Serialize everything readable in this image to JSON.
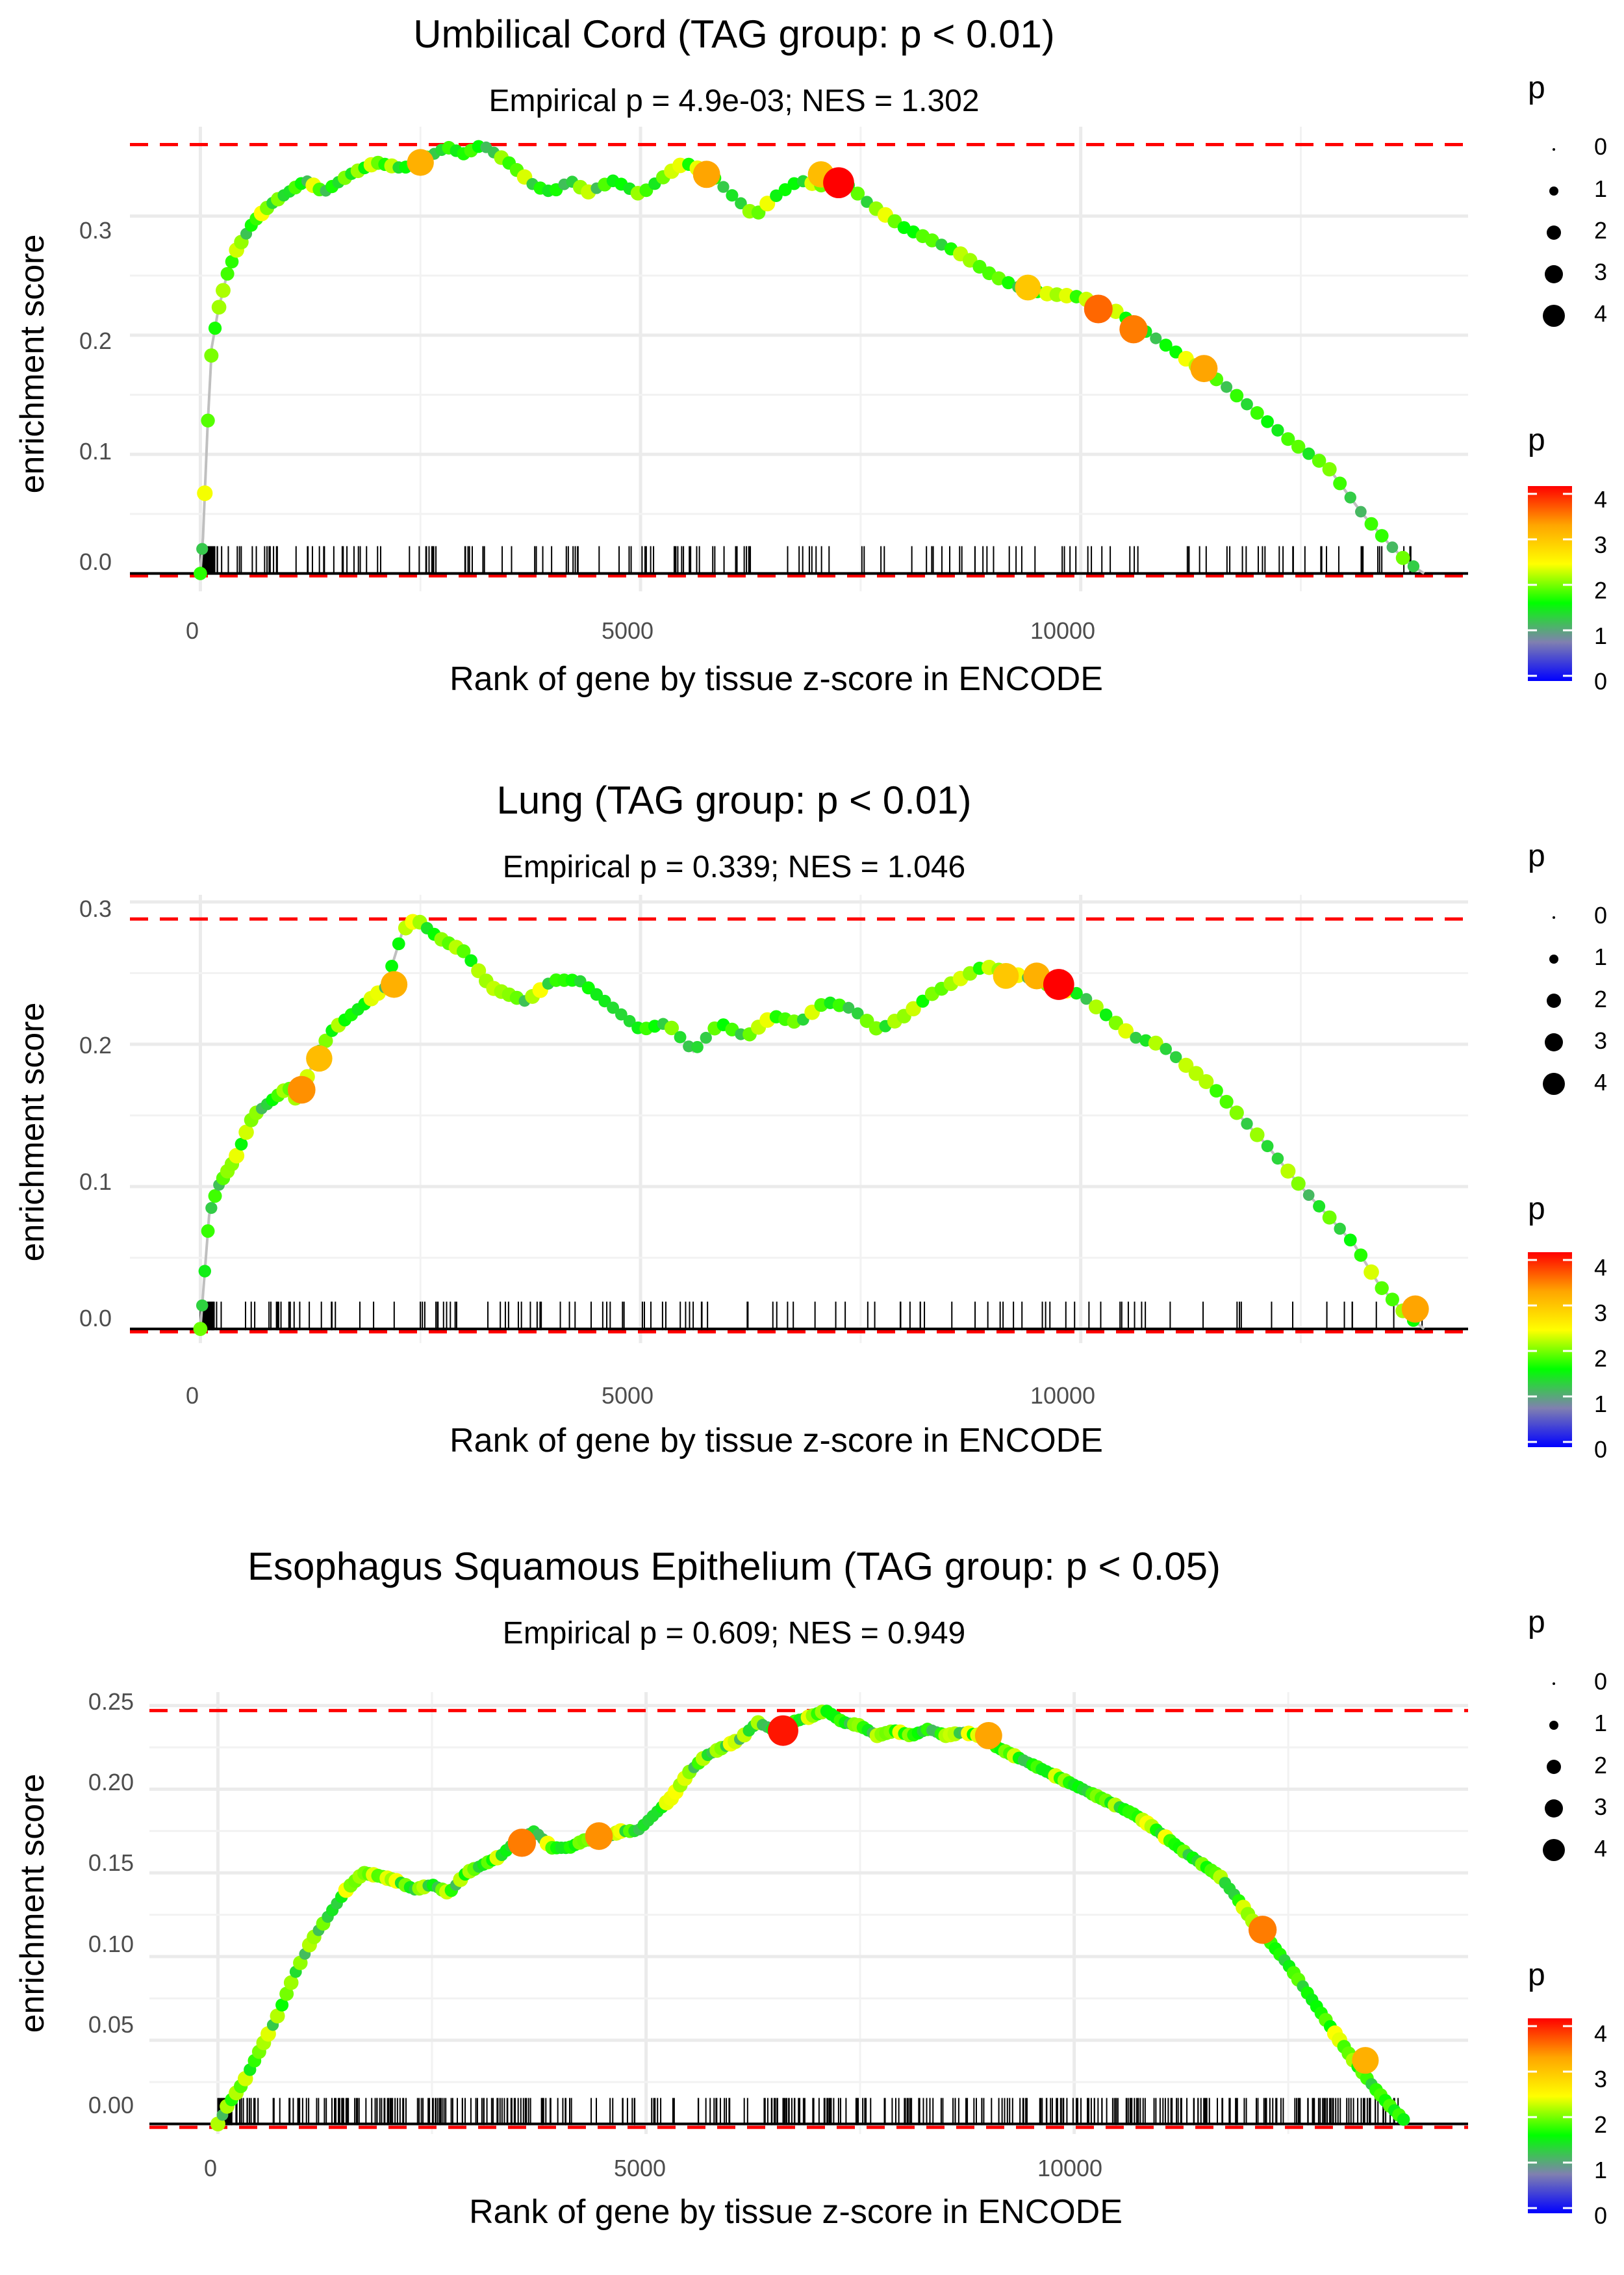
{
  "legend": {
    "size_title": "p",
    "size_labels": [
      "0",
      "1",
      "2",
      "3",
      "4"
    ],
    "color_title": "p",
    "color_labels": [
      "4",
      "3",
      "2",
      "1",
      "0"
    ],
    "colors": [
      "#0000ff",
      "#8080b0",
      "#00ff00",
      "#ffff00",
      "#ffa500",
      "#ff0000"
    ]
  },
  "chart_data": [
    {
      "type": "line",
      "title": "Umbilical Cord (TAG group: p < 0.01)",
      "subtitle": "Empirical p = 4.9e-03; NES = 1.302",
      "xlabel": "Rank of gene by tissue z-score in ENCODE",
      "ylabel": "enrichment score",
      "xlim": [
        -800,
        14400
      ],
      "ylim": [
        -0.015,
        0.375
      ],
      "xticks": [
        0,
        5000,
        10000
      ],
      "xtick_labels": [
        "0",
        "5000",
        "10000"
      ],
      "yticks": [
        0.0,
        0.1,
        0.2,
        0.3
      ],
      "ytick_labels": [
        "0.0",
        "0.1",
        "0.2",
        "0.3"
      ],
      "max_es": 0.36,
      "min_es": -0.002,
      "curve": [
        [
          0,
          0
        ],
        [
          30,
          0.03
        ],
        [
          80,
          0.12
        ],
        [
          130,
          0.19
        ],
        [
          200,
          0.22
        ],
        [
          300,
          0.25
        ],
        [
          400,
          0.27
        ],
        [
          600,
          0.295
        ],
        [
          800,
          0.31
        ],
        [
          1000,
          0.32
        ],
        [
          1200,
          0.33
        ],
        [
          1400,
          0.32
        ],
        [
          1700,
          0.335
        ],
        [
          2000,
          0.345
        ],
        [
          2300,
          0.34
        ],
        [
          2600,
          0.35
        ],
        [
          2800,
          0.358
        ],
        [
          3000,
          0.352
        ],
        [
          3200,
          0.36
        ],
        [
          3500,
          0.345
        ],
        [
          3800,
          0.325
        ],
        [
          4000,
          0.32
        ],
        [
          4200,
          0.33
        ],
        [
          4400,
          0.32
        ],
        [
          4700,
          0.33
        ],
        [
          5000,
          0.318
        ],
        [
          5300,
          0.335
        ],
        [
          5500,
          0.345
        ],
        [
          5800,
          0.335
        ],
        [
          6000,
          0.32
        ],
        [
          6300,
          0.3
        ],
        [
          6500,
          0.315
        ],
        [
          6800,
          0.33
        ],
        [
          7100,
          0.325
        ],
        [
          7300,
          0.33
        ],
        [
          7600,
          0.31
        ],
        [
          8000,
          0.29
        ],
        [
          8300,
          0.28
        ],
        [
          8600,
          0.27
        ],
        [
          9000,
          0.25
        ],
        [
          9300,
          0.24
        ],
        [
          9600,
          0.235
        ],
        [
          10000,
          0.232
        ],
        [
          10400,
          0.22
        ],
        [
          10800,
          0.2
        ],
        [
          11200,
          0.18
        ],
        [
          11600,
          0.16
        ],
        [
          12000,
          0.135
        ],
        [
          12400,
          0.11
        ],
        [
          12800,
          0.09
        ],
        [
          13200,
          0.05
        ],
        [
          13500,
          0.025
        ],
        [
          13700,
          0.01
        ],
        [
          13900,
          0.0
        ]
      ],
      "big_points": [
        [
          2500,
          0.345,
          3.5
        ],
        [
          5750,
          0.335,
          3.6
        ],
        [
          7050,
          0.335,
          3.4
        ],
        [
          7250,
          0.328,
          4.4
        ],
        [
          9400,
          0.24,
          3.3
        ],
        [
          10200,
          0.222,
          3.9
        ],
        [
          10600,
          0.205,
          3.8
        ],
        [
          11400,
          0.172,
          3.6
        ]
      ],
      "ticks_min": 0,
      "ticks_max": 13900,
      "tick_count": 180
    },
    {
      "type": "line",
      "title": "Lung (TAG group: p < 0.01)",
      "subtitle": "Empirical p = 0.339; NES = 1.046",
      "xlabel": "Rank of gene by tissue z-score in ENCODE",
      "ylabel": "enrichment score",
      "xlim": [
        -800,
        14400
      ],
      "ylim": [
        -0.01,
        0.305
      ],
      "xticks": [
        0,
        5000,
        10000
      ],
      "xtick_labels": [
        "0",
        "5000",
        "10000"
      ],
      "yticks": [
        0.0,
        0.1,
        0.2,
        0.3
      ],
      "ytick_labels": [
        "0.0",
        "0.1",
        "0.2",
        "0.3"
      ],
      "max_es": 0.288,
      "min_es": -0.002,
      "curve": [
        [
          0,
          0
        ],
        [
          50,
          0.04
        ],
        [
          100,
          0.08
        ],
        [
          200,
          0.1
        ],
        [
          400,
          0.12
        ],
        [
          600,
          0.15
        ],
        [
          800,
          0.16
        ],
        [
          1000,
          0.17
        ],
        [
          1100,
          0.16
        ],
        [
          1300,
          0.19
        ],
        [
          1500,
          0.21
        ],
        [
          1700,
          0.22
        ],
        [
          1900,
          0.23
        ],
        [
          2100,
          0.24
        ],
        [
          2300,
          0.28
        ],
        [
          2450,
          0.288
        ],
        [
          2700,
          0.275
        ],
        [
          3000,
          0.265
        ],
        [
          3300,
          0.24
        ],
        [
          3700,
          0.23
        ],
        [
          4000,
          0.245
        ],
        [
          4300,
          0.245
        ],
        [
          4700,
          0.225
        ],
        [
          5000,
          0.21
        ],
        [
          5300,
          0.215
        ],
        [
          5600,
          0.195
        ],
        [
          5900,
          0.215
        ],
        [
          6200,
          0.205
        ],
        [
          6500,
          0.22
        ],
        [
          6800,
          0.215
        ],
        [
          7100,
          0.23
        ],
        [
          7400,
          0.225
        ],
        [
          7700,
          0.21
        ],
        [
          8000,
          0.22
        ],
        [
          8300,
          0.235
        ],
        [
          8600,
          0.245
        ],
        [
          8900,
          0.255
        ],
        [
          9200,
          0.25
        ],
        [
          9500,
          0.245
        ],
        [
          9700,
          0.24
        ],
        [
          10000,
          0.235
        ],
        [
          10300,
          0.22
        ],
        [
          10600,
          0.205
        ],
        [
          10900,
          0.2
        ],
        [
          11200,
          0.185
        ],
        [
          11500,
          0.17
        ],
        [
          11800,
          0.15
        ],
        [
          12100,
          0.13
        ],
        [
          12500,
          0.1
        ],
        [
          12800,
          0.08
        ],
        [
          13100,
          0.06
        ],
        [
          13400,
          0.03
        ],
        [
          13700,
          0.01
        ],
        [
          13900,
          0.0
        ]
      ],
      "big_points": [
        [
          1150,
          0.168,
          3.7
        ],
        [
          1350,
          0.19,
          3.4
        ],
        [
          2200,
          0.242,
          3.5
        ],
        [
          9150,
          0.248,
          3.3
        ],
        [
          9500,
          0.248,
          3.5
        ],
        [
          9750,
          0.242,
          4.4
        ],
        [
          13800,
          0.014,
          3.6
        ]
      ],
      "ticks_min": 0,
      "ticks_max": 13900,
      "tick_count": 140
    },
    {
      "type": "line",
      "title": "Esophagus Squamous Epithelium (TAG group: p < 0.05)",
      "subtitle": "Empirical p = 0.609; NES = 0.949",
      "xlabel": "Rank of gene by tissue z-score in ENCODE",
      "ylabel": "enrichment score",
      "xlim": [
        -800,
        14600
      ],
      "ylim": [
        -0.006,
        0.258
      ],
      "xticks": [
        0,
        5000,
        10000
      ],
      "xtick_labels": [
        "0",
        "5000",
        "10000"
      ],
      "yticks": [
        0.0,
        0.05,
        0.1,
        0.15,
        0.2,
        0.25
      ],
      "ytick_labels": [
        "0.00",
        "0.05",
        "0.10",
        "0.15",
        "0.20",
        "0.25"
      ],
      "max_es": 0.247,
      "min_es": -0.002,
      "curve": [
        [
          0,
          0
        ],
        [
          100,
          0.01
        ],
        [
          300,
          0.025
        ],
        [
          500,
          0.045
        ],
        [
          700,
          0.065
        ],
        [
          900,
          0.09
        ],
        [
          1100,
          0.11
        ],
        [
          1300,
          0.125
        ],
        [
          1500,
          0.14
        ],
        [
          1700,
          0.15
        ],
        [
          1900,
          0.148
        ],
        [
          2100,
          0.145
        ],
        [
          2300,
          0.14
        ],
        [
          2500,
          0.143
        ],
        [
          2700,
          0.138
        ],
        [
          2900,
          0.15
        ],
        [
          3100,
          0.155
        ],
        [
          3300,
          0.16
        ],
        [
          3500,
          0.17
        ],
        [
          3700,
          0.175
        ],
        [
          3900,
          0.165
        ],
        [
          4100,
          0.165
        ],
        [
          4300,
          0.17
        ],
        [
          4500,
          0.17
        ],
        [
          4700,
          0.175
        ],
        [
          4900,
          0.175
        ],
        [
          5100,
          0.185
        ],
        [
          5300,
          0.195
        ],
        [
          5500,
          0.21
        ],
        [
          5700,
          0.22
        ],
        [
          5900,
          0.225
        ],
        [
          6100,
          0.23
        ],
        [
          6300,
          0.24
        ],
        [
          6500,
          0.235
        ],
        [
          6700,
          0.24
        ],
        [
          6900,
          0.243
        ],
        [
          7100,
          0.247
        ],
        [
          7300,
          0.24
        ],
        [
          7500,
          0.238
        ],
        [
          7700,
          0.232
        ],
        [
          7900,
          0.235
        ],
        [
          8100,
          0.232
        ],
        [
          8300,
          0.236
        ],
        [
          8500,
          0.232
        ],
        [
          8700,
          0.234
        ],
        [
          8900,
          0.232
        ],
        [
          9100,
          0.225
        ],
        [
          9300,
          0.22
        ],
        [
          9500,
          0.215
        ],
        [
          9700,
          0.21
        ],
        [
          9900,
          0.205
        ],
        [
          10100,
          0.2
        ],
        [
          10300,
          0.195
        ],
        [
          10500,
          0.19
        ],
        [
          10700,
          0.185
        ],
        [
          10900,
          0.178
        ],
        [
          11100,
          0.17
        ],
        [
          11300,
          0.162
        ],
        [
          11500,
          0.155
        ],
        [
          11700,
          0.148
        ],
        [
          11900,
          0.135
        ],
        [
          12100,
          0.12
        ],
        [
          12300,
          0.108
        ],
        [
          12500,
          0.095
        ],
        [
          12700,
          0.08
        ],
        [
          12900,
          0.065
        ],
        [
          13100,
          0.05
        ],
        [
          13300,
          0.035
        ],
        [
          13500,
          0.022
        ],
        [
          13700,
          0.01
        ],
        [
          13900,
          0.0
        ]
      ],
      "big_points": [
        [
          3550,
          0.168,
          3.8
        ],
        [
          4450,
          0.172,
          3.7
        ],
        [
          6600,
          0.235,
          4.3
        ],
        [
          9000,
          0.232,
          3.6
        ],
        [
          12200,
          0.116,
          3.8
        ],
        [
          13400,
          0.038,
          3.5
        ]
      ],
      "ticks_min": 0,
      "ticks_max": 13900,
      "tick_count": 420
    }
  ]
}
